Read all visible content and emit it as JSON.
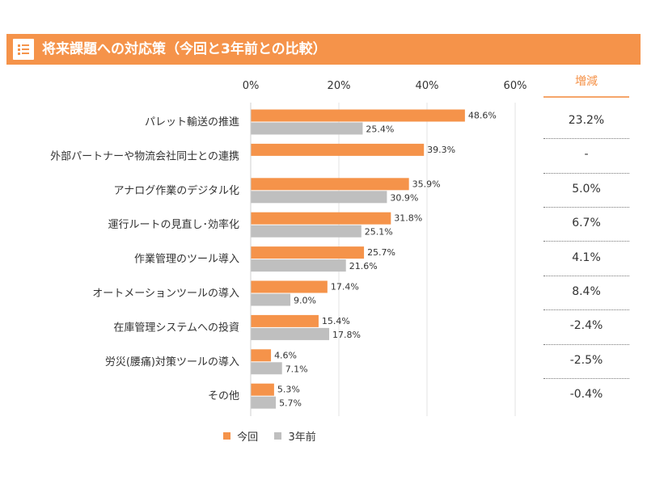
{
  "title": "将来課題への対応策（今回と3年前との比較）",
  "colors": {
    "accent": "#f5934a",
    "current": "#f5934a",
    "previous": "#bfbfbf"
  },
  "chart_data": {
    "type": "bar",
    "orientation": "horizontal",
    "categories": [
      "パレット輸送の推進",
      "外部パートナーや物流会社同士との連携",
      "アナログ作業のデジタル化",
      "運行ルートの見直し･効率化",
      "作業管理のツール導入",
      "オートメーションツールの導入",
      "在庫管理システムへの投資",
      "労災(腰痛)対策ツールの導入",
      "その他"
    ],
    "series": [
      {
        "name": "今回",
        "values": [
          48.6,
          39.3,
          35.9,
          31.8,
          25.7,
          17.4,
          15.4,
          4.6,
          5.3
        ],
        "labels": [
          "48.6%",
          "39.3%",
          "35.9%",
          "31.8%",
          "25.7%",
          "17.4%",
          "15.4%",
          "4.6%",
          "5.3%"
        ]
      },
      {
        "name": "3年前",
        "values": [
          25.4,
          null,
          30.9,
          25.1,
          21.6,
          9.0,
          17.8,
          7.1,
          5.7
        ],
        "labels": [
          "25.4%",
          "",
          "30.9%",
          "25.1%",
          "21.6%",
          "9.0%",
          "17.8%",
          "7.1%",
          "5.7%"
        ]
      }
    ],
    "x_ticks": [
      "0%",
      "20%",
      "40%",
      "60%"
    ],
    "xlim": [
      0,
      60
    ],
    "grid": true,
    "legend": "bottom"
  },
  "delta": {
    "header": "増減",
    "values": [
      "23.2%",
      "-",
      "5.0%",
      "6.7%",
      "4.1%",
      "8.4%",
      "-2.4%",
      "-2.5%",
      "-0.4%"
    ]
  }
}
